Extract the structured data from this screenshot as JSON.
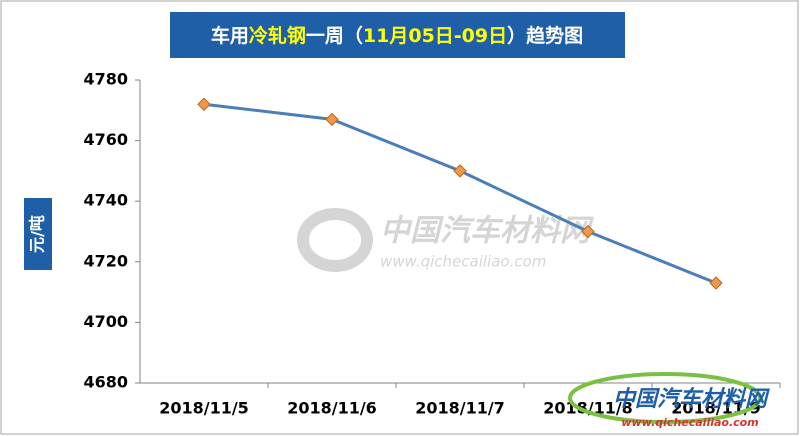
{
  "chart_data": {
    "type": "line",
    "title": [
      "车用",
      "冷轧钢",
      "一周（",
      "11月05日-09日",
      "）趋势图"
    ],
    "y_label": "元/吨",
    "categories": [
      "2018/11/5",
      "2018/11/6",
      "2018/11/7",
      "2018/11/8",
      "2018/11/9"
    ],
    "series": [
      {
        "name": null,
        "color": "#4a7ebb",
        "marker_color": "#f79646",
        "values": [
          4772,
          4767,
          4750,
          4730,
          4713
        ]
      }
    ],
    "ylim": [
      4680,
      4780
    ],
    "yticks": [
      4680,
      4700,
      4720,
      4740,
      4760,
      4780
    ],
    "grid": false,
    "watermark": {
      "name": "中国汽车材料网",
      "url": "www.qichecailiao.com"
    },
    "logo": {
      "name": "中国汽车材料网",
      "url": "www.qichecailiao.com"
    }
  }
}
